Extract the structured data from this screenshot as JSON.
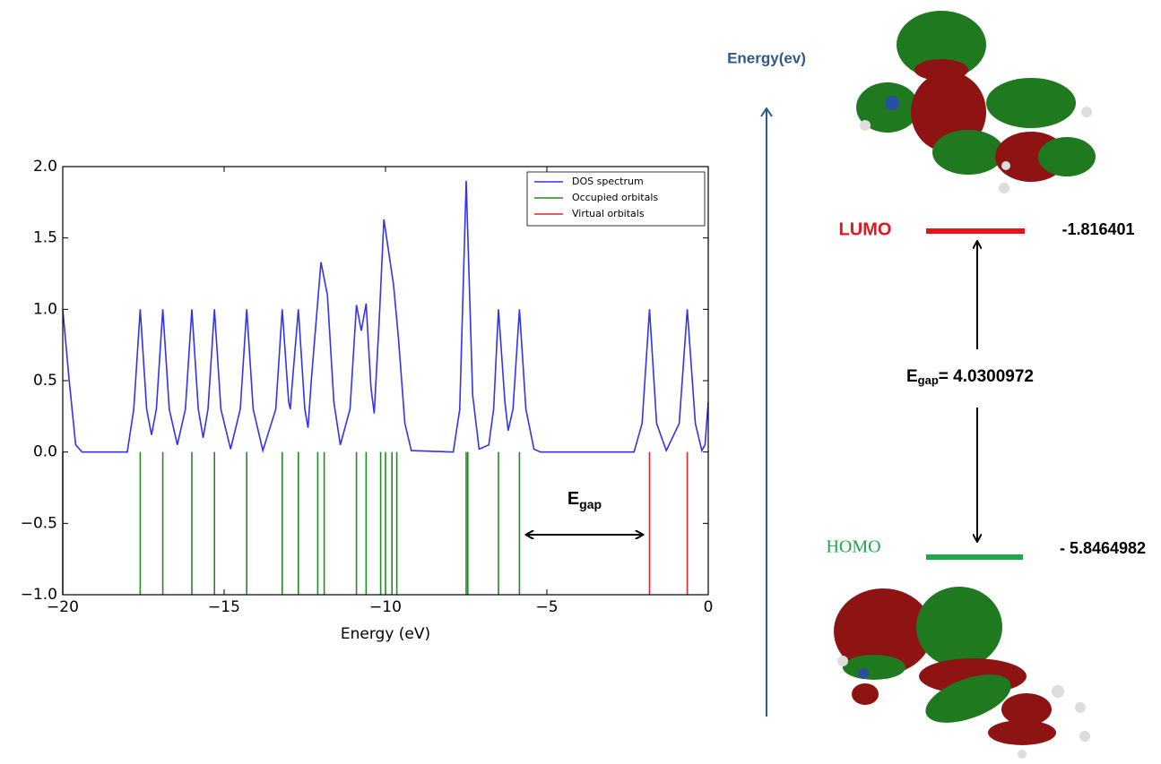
{
  "chart_data": {
    "type": "line",
    "xlabel": "Energy (eV)",
    "xlim": [
      -20,
      0
    ],
    "ylim": [
      -1.0,
      2.0
    ],
    "xticks": [
      {
        "value": -20,
        "label": "−20"
      },
      {
        "value": -15,
        "label": "−15"
      },
      {
        "value": -10,
        "label": "−10"
      },
      {
        "value": -5,
        "label": "−5"
      },
      {
        "value": 0,
        "label": "0"
      }
    ],
    "yticks": [
      {
        "value": -1.0,
        "label": "−1.0"
      },
      {
        "value": -0.5,
        "label": "−0.5"
      },
      {
        "value": 0,
        "label": "0.0"
      },
      {
        "value": 0.5,
        "label": "0.5"
      },
      {
        "value": 1.0,
        "label": "1.0"
      },
      {
        "value": 1.5,
        "label": "1.5"
      },
      {
        "value": 2.0,
        "label": "2.0"
      }
    ],
    "legend": "upper right",
    "series": [
      {
        "name": "DOS spectrum",
        "color": "#3333ee",
        "x": [
          -20,
          -19.8,
          -19.6,
          -19.4,
          -18.0,
          -17.8,
          -17.6,
          -17.4,
          -17.25,
          -17.1,
          -16.9,
          -16.7,
          -16.45,
          -16.2,
          -16.0,
          -15.8,
          -15.65,
          -15.5,
          -15.3,
          -15.1,
          -14.8,
          -14.5,
          -14.3,
          -14.1,
          -13.8,
          -13.4,
          -13.2,
          -13.0,
          -12.95,
          -12.9,
          -12.7,
          -12.5,
          -12.4,
          -12.3,
          -12.0,
          -11.8,
          -11.6,
          -11.4,
          -11.1,
          -10.9,
          -10.75,
          -10.6,
          -10.45,
          -10.35,
          -10.2,
          -10.05,
          -9.9,
          -9.75,
          -9.6,
          -9.4,
          -9.2,
          -7.9,
          -7.7,
          -7.5,
          -7.3,
          -7.1,
          -6.8,
          -6.65,
          -6.5,
          -6.3,
          -6.2,
          -6.05,
          -5.85,
          -5.65,
          -5.4,
          -5.2,
          -2.3,
          -2.05,
          -1.82,
          -1.6,
          -1.3,
          -0.9,
          -0.65,
          -0.4,
          -0.2,
          -0.1,
          0
        ],
        "values": [
          1.0,
          0.5,
          0.05,
          0,
          0,
          0.3,
          1.0,
          0.3,
          0.12,
          0.3,
          1.0,
          0.3,
          0.05,
          0.3,
          1.0,
          0.3,
          0.1,
          0.3,
          1.0,
          0.3,
          0.02,
          0.3,
          1.0,
          0.3,
          0.01,
          0.3,
          1.0,
          0.35,
          0.3,
          0.45,
          1.0,
          0.3,
          0.17,
          0.5,
          1.33,
          1.1,
          0.35,
          0.05,
          0.3,
          1.03,
          0.85,
          1.04,
          0.45,
          0.27,
          0.9,
          1.63,
          1.4,
          1.17,
          0.8,
          0.2,
          0.01,
          0,
          0.3,
          1.9,
          0.4,
          0.02,
          0.05,
          0.3,
          1.0,
          0.35,
          0.15,
          0.3,
          1.0,
          0.3,
          0.02,
          0,
          0,
          0.2,
          1.0,
          0.2,
          0.01,
          0.2,
          1.0,
          0.2,
          0.01,
          0.05,
          0.35
        ]
      },
      {
        "name": "Occupied orbitals",
        "color": "#228b22",
        "x": [
          -20,
          -17.6,
          -16.9,
          -16.0,
          -15.3,
          -14.3,
          -13.2,
          -12.7,
          -12.1,
          -11.9,
          -10.9,
          -10.6,
          -10.15,
          -10.0,
          -9.8,
          -9.65,
          -7.5,
          -7.45,
          -6.5,
          -5.85
        ]
      },
      {
        "name": "Virtual orbitals",
        "color": "#e0262b",
        "x": [
          -1.82,
          -0.65
        ]
      }
    ],
    "annotation": {
      "main": "E",
      "sub": "gap"
    }
  },
  "energy_diagram": {
    "axis_label": "Energy(ev)",
    "lumo": {
      "label": "LUMO",
      "value": "-1.816401"
    },
    "homo": {
      "label": "HOMO",
      "value": "- 5.8464982"
    },
    "gap": {
      "main": "E",
      "sub": "gap",
      "rest": "= 4.0300972"
    }
  }
}
